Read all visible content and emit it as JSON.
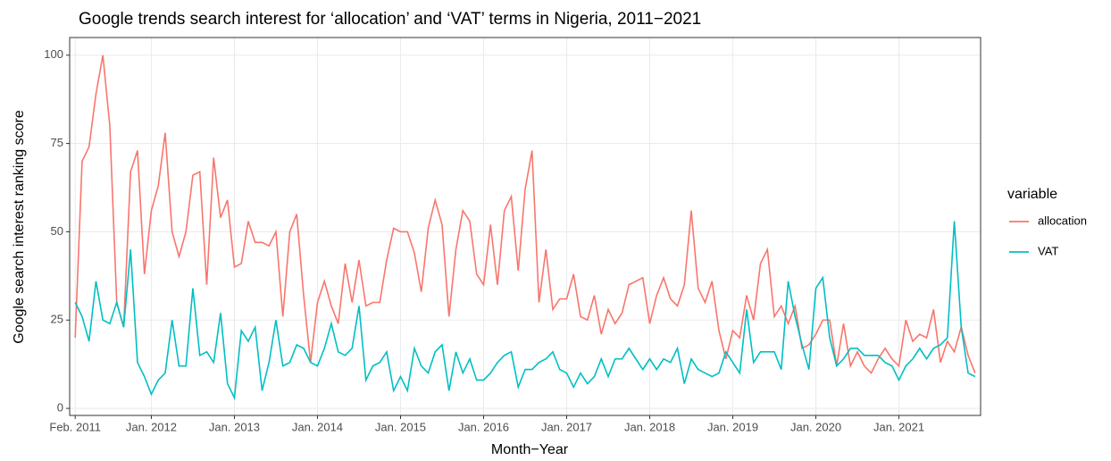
{
  "chart_data": {
    "type": "line",
    "title": "Google trends search interest for ‘allocation’ and ‘VAT’ terms in Nigeria, 2011−2021",
    "x_label": "Month−Year",
    "y_label": "Google search interest ranking score",
    "legend_title": "variable",
    "legend_position": "right",
    "grid": true,
    "categories": [
      "Feb. 2011",
      null,
      null,
      null,
      null,
      null,
      null,
      null,
      null,
      null,
      null,
      "Jan. 2012",
      null,
      null,
      null,
      null,
      null,
      null,
      null,
      null,
      null,
      null,
      null,
      "Jan. 2013",
      null,
      null,
      null,
      null,
      null,
      null,
      null,
      null,
      null,
      null,
      null,
      "Jan. 2014",
      null,
      null,
      null,
      null,
      null,
      null,
      null,
      null,
      null,
      null,
      null,
      "Jan. 2015",
      null,
      null,
      null,
      null,
      null,
      null,
      null,
      null,
      null,
      null,
      null,
      "Jan. 2016",
      null,
      null,
      null,
      null,
      null,
      null,
      null,
      null,
      null,
      null,
      null,
      "Jan. 2017",
      null,
      null,
      null,
      null,
      null,
      null,
      null,
      null,
      null,
      null,
      null,
      "Jan. 2018",
      null,
      null,
      null,
      null,
      null,
      null,
      null,
      null,
      null,
      null,
      null,
      "Jan. 2019",
      null,
      null,
      null,
      null,
      null,
      null,
      null,
      null,
      null,
      null,
      null,
      "Jan. 2020",
      null,
      null,
      null,
      null,
      null,
      null,
      null,
      null,
      null,
      null,
      null,
      "Jan. 2021",
      null,
      null,
      null,
      null,
      null,
      null,
      null,
      null,
      null,
      null,
      null
    ],
    "ylim": [
      -2,
      105
    ],
    "yticks": [
      0,
      25,
      50,
      75,
      100
    ],
    "series": [
      {
        "name": "allocation",
        "color": "#F8766D",
        "values": [
          20,
          70,
          74,
          89,
          100,
          80,
          30,
          23,
          67,
          73,
          38,
          56,
          63,
          78,
          50,
          43,
          50,
          66,
          67,
          35,
          71,
          54,
          59,
          40,
          41,
          53,
          47,
          47,
          46,
          50,
          26,
          50,
          55,
          32,
          13,
          30,
          36,
          29,
          24,
          41,
          30,
          42,
          29,
          30,
          30,
          42,
          51,
          50,
          50,
          44,
          33,
          51,
          59,
          52,
          26,
          45,
          56,
          53,
          38,
          35,
          52,
          35,
          56,
          60,
          39,
          62,
          73,
          30,
          45,
          28,
          31,
          31,
          38,
          26,
          25,
          32,
          21,
          28,
          24,
          27,
          35,
          36,
          37,
          24,
          32,
          37,
          31,
          29,
          35,
          56,
          34,
          30,
          36,
          22,
          14,
          22,
          20,
          32,
          25,
          41,
          45,
          26,
          29,
          24,
          29,
          17,
          18,
          21,
          25,
          25,
          12,
          24,
          12,
          16,
          12,
          10,
          14,
          17,
          14,
          12,
          25,
          19,
          21,
          20,
          28,
          13,
          19,
          16,
          23,
          15,
          10
        ]
      },
      {
        "name": "VAT",
        "color": "#00BFC4",
        "values": [
          30,
          26,
          19,
          36,
          25,
          24,
          30,
          23,
          45,
          13,
          9,
          4,
          8,
          10,
          25,
          12,
          12,
          34,
          15,
          16,
          13,
          27,
          7,
          3,
          22,
          19,
          23,
          5,
          13,
          25,
          12,
          13,
          18,
          17,
          13,
          12,
          17,
          24,
          16,
          15,
          17,
          29,
          8,
          12,
          13,
          16,
          5,
          9,
          5,
          17,
          12,
          10,
          16,
          18,
          5,
          16,
          10,
          14,
          8,
          8,
          10,
          13,
          15,
          16,
          6,
          11,
          11,
          13,
          14,
          16,
          11,
          10,
          6,
          10,
          7,
          9,
          14,
          9,
          14,
          14,
          17,
          14,
          11,
          14,
          11,
          14,
          13,
          17,
          7,
          14,
          11,
          10,
          9,
          10,
          16,
          13,
          10,
          28,
          13,
          16,
          16,
          16,
          11,
          36,
          26,
          18,
          11,
          34,
          37,
          20,
          12,
          14,
          17,
          17,
          15,
          15,
          15,
          13,
          12,
          8,
          12,
          14,
          17,
          14,
          17,
          18,
          20,
          53,
          23,
          10,
          9
        ]
      }
    ]
  }
}
